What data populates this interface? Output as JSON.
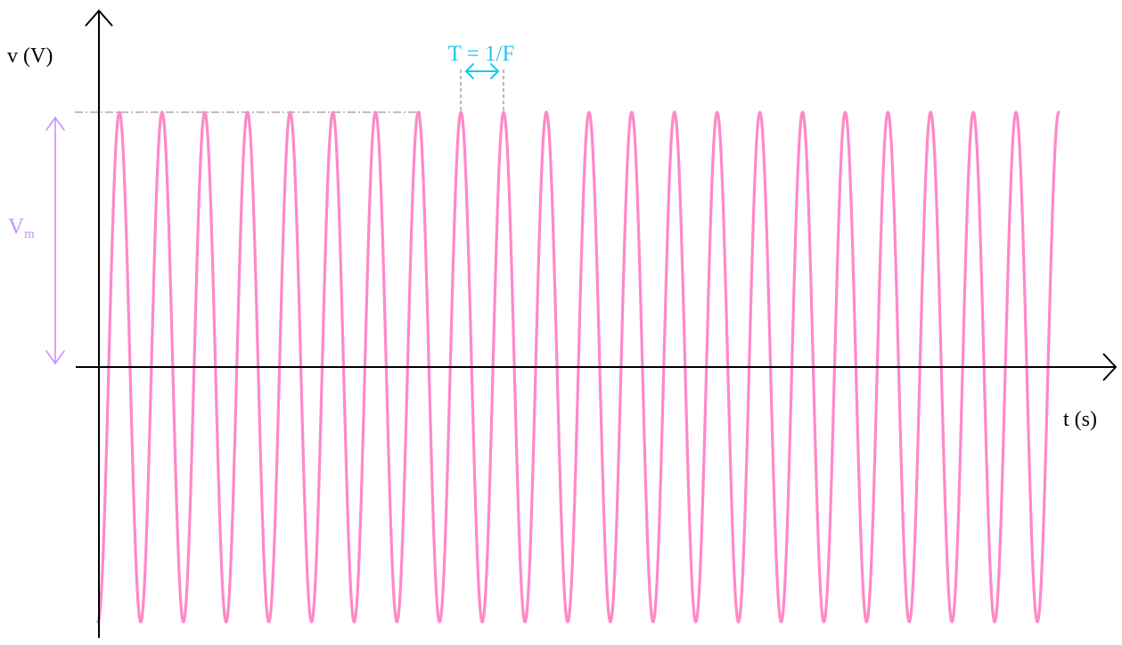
{
  "diagram": {
    "y_axis_label": "v (V)",
    "x_axis_label": "t (s)",
    "period_label": "T = 1/F",
    "amplitude_label": "V",
    "amplitude_label_sub": "m"
  },
  "wave": {
    "type": "sine",
    "cycles": 22.5,
    "start_phase": "trough"
  },
  "colors": {
    "axis": "#000000",
    "wave": "#ff88c8",
    "period": "#1fc6f0",
    "amplitude": "#c890ff",
    "guide": "#9a9a9a"
  }
}
